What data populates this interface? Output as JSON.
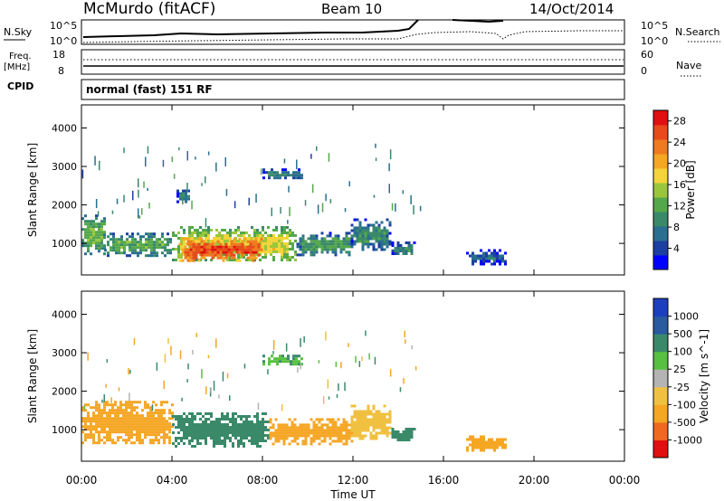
{
  "header": {
    "station": "McMurdo (fitACF)",
    "beam": "Beam 10",
    "date": "14/Oct/2014"
  },
  "top_panel": {
    "left_label": "N.Sky",
    "right_label": "N.Search",
    "left_ticks": [
      "10^5",
      "10^0"
    ],
    "right_ticks": [
      "10^5",
      "10^0"
    ]
  },
  "freq_panel": {
    "left_label": "Freq.",
    "left_unit": "[MHz]",
    "left_ticks": [
      "18",
      "8"
    ],
    "right_label": "Nave",
    "right_ticks": [
      "60",
      "0"
    ]
  },
  "cpid": {
    "label": "CPID",
    "value": "normal (fast) 151 RF"
  },
  "x_axis": {
    "label": "Time UT",
    "ticks": [
      "00:00",
      "04:00",
      "08:00",
      "12:00",
      "16:00",
      "20:00",
      "00:00"
    ]
  },
  "chart_data": [
    {
      "type": "heatmap",
      "quantity": "Power",
      "ylabel": "Slant Range [km]",
      "yticks": [
        1000,
        2000,
        3000,
        4000
      ],
      "ylim": [
        180,
        4600
      ],
      "xlim_hours": [
        0,
        24
      ],
      "colorbar": {
        "label": "Power [dB]",
        "ticks": [
          "4",
          "8",
          "12",
          "16",
          "20",
          "24",
          "28"
        ],
        "range": [
          0,
          30
        ],
        "colors": [
          "#0000ff",
          "#1c3fa3",
          "#2a6f8f",
          "#3a8a6a",
          "#55a84a",
          "#9ac63c",
          "#f4d43a",
          "#f5a623",
          "#ef7a1f",
          "#e84a1a",
          "#e01010"
        ]
      },
      "regions": [
        {
          "t": [
            0.0,
            1.0
          ],
          "r": [
            750,
            1750
          ],
          "level": 13
        },
        {
          "t": [
            1.0,
            4.0
          ],
          "r": [
            700,
            1280
          ],
          "level": 12
        },
        {
          "t": [
            4.0,
            9.5
          ],
          "r": [
            550,
            1450
          ],
          "level": 17
        },
        {
          "t": [
            4.3,
            8.0
          ],
          "r": [
            580,
            1150
          ],
          "level": 26
        },
        {
          "t": [
            9.5,
            12.0
          ],
          "r": [
            700,
            1300
          ],
          "level": 11
        },
        {
          "t": [
            11.9,
            13.6
          ],
          "r": [
            820,
            1650
          ],
          "level": 9
        },
        {
          "t": [
            13.7,
            14.7
          ],
          "r": [
            700,
            1050
          ],
          "level": 9
        },
        {
          "t": [
            8.0,
            9.8
          ],
          "r": [
            2700,
            2950
          ],
          "level": 8
        },
        {
          "t": [
            4.2,
            4.8
          ],
          "r": [
            2100,
            2400
          ],
          "level": 9
        },
        {
          "t": [
            17.0,
            18.8
          ],
          "r": [
            480,
            850
          ],
          "level": 6
        }
      ]
    },
    {
      "type": "heatmap",
      "quantity": "Velocity",
      "ylabel": "Slant Range [km]",
      "yticks": [
        1000,
        2000,
        3000,
        4000
      ],
      "ylim": [
        180,
        4600
      ],
      "xlim_hours": [
        0,
        24
      ],
      "colorbar": {
        "label": "Velocity [m s^-1]",
        "ticks": [
          "-1000",
          "-500",
          "-100",
          "-25",
          "25",
          "100",
          "500",
          "1000"
        ],
        "colors": [
          "#e01010",
          "#ef6a20",
          "#f5a623",
          "#f0c040",
          "#b4b4b4",
          "#58c040",
          "#3a8a6a",
          "#2a5aa0",
          "#1c3fc0"
        ]
      },
      "regions": [
        {
          "t": [
            0.0,
            4.0
          ],
          "r": [
            650,
            1750
          ],
          "value": -180
        },
        {
          "t": [
            4.0,
            8.3
          ],
          "r": [
            600,
            1450
          ],
          "value": 260
        },
        {
          "t": [
            8.3,
            12.0
          ],
          "r": [
            650,
            1300
          ],
          "value": -200
        },
        {
          "t": [
            11.9,
            13.6
          ],
          "r": [
            800,
            1650
          ],
          "value": -60
        },
        {
          "t": [
            13.7,
            14.7
          ],
          "r": [
            700,
            1050
          ],
          "value": 180
        },
        {
          "t": [
            8.0,
            9.8
          ],
          "r": [
            2700,
            2950
          ],
          "value": 90
        },
        {
          "t": [
            17.0,
            18.8
          ],
          "r": [
            480,
            850
          ],
          "value": -350
        }
      ]
    }
  ],
  "colors": {
    "axis": "#000000",
    "background": "#ffffff"
  }
}
